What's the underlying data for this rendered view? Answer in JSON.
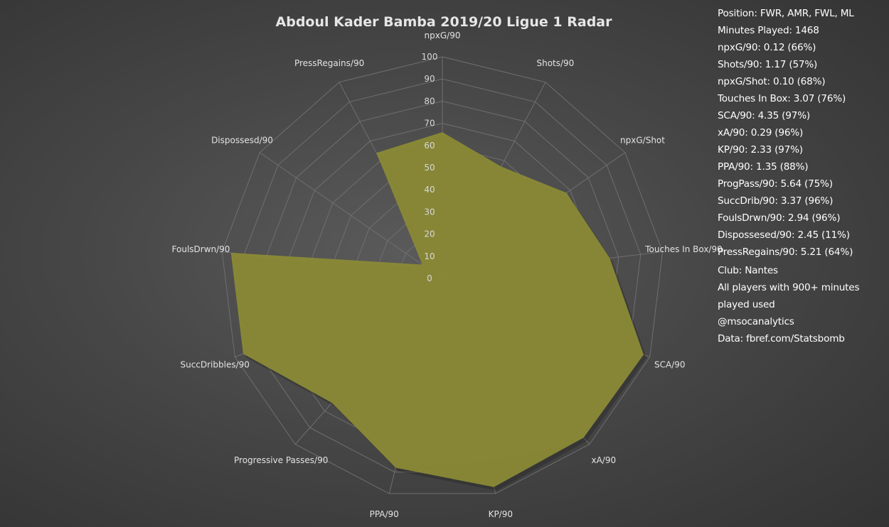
{
  "chart_data": {
    "type": "radar",
    "title": "Abdoul Kader Bamba 2019/20 Ligue 1 Radar",
    "categories": [
      "npxG/90",
      "Shots/90",
      "npxG/Shot",
      "Touches In Box/90",
      "SCA/90",
      "xA/90",
      "KP/90",
      "PPA/90",
      "Progressive Passes/90",
      "SuccDribbles/90",
      "FoulsDrwn/90",
      "Dispossesd/90",
      "PressRegains/90"
    ],
    "values": [
      66,
      57,
      68,
      76,
      97,
      96,
      97,
      88,
      75,
      96,
      96,
      11,
      64
    ],
    "ylim": [
      0,
      100
    ],
    "ticks": [
      "0",
      "10",
      "20",
      "30",
      "40",
      "50",
      "60",
      "70",
      "80",
      "90",
      "100"
    ],
    "fill_color": "#8a8a36",
    "grid": true
  },
  "info": {
    "lines": [
      "Position: FWR, AMR, FWL, ML",
      "Minutes Played: 1468",
      "npxG/90: 0.12 (66%)",
      "Shots/90: 1.17 (57%)",
      "npxG/Shot: 0.10 (68%)",
      "Touches In Box: 3.07 (76%)",
      "SCA/90: 4.35 (97%)",
      "xA/90: 0.29 (96%)",
      "KP/90: 2.33 (97%)",
      "PPA/90: 1.35 (88%)",
      "ProgPass/90: 5.64 (75%)",
      "SuccDrib/90: 3.37 (96%)",
      "FoulsDrwn/90: 2.94 (96%)",
      "Dispossesed/90: 2.45 (11%)",
      "PressRegains/90: 5.21 (64%)"
    ],
    "club": "Club: Nantes",
    "note": "All players with 900+ minutes played used",
    "handle": "@msocanalytics",
    "source": "Data: fbref.com/Statsbomb"
  }
}
